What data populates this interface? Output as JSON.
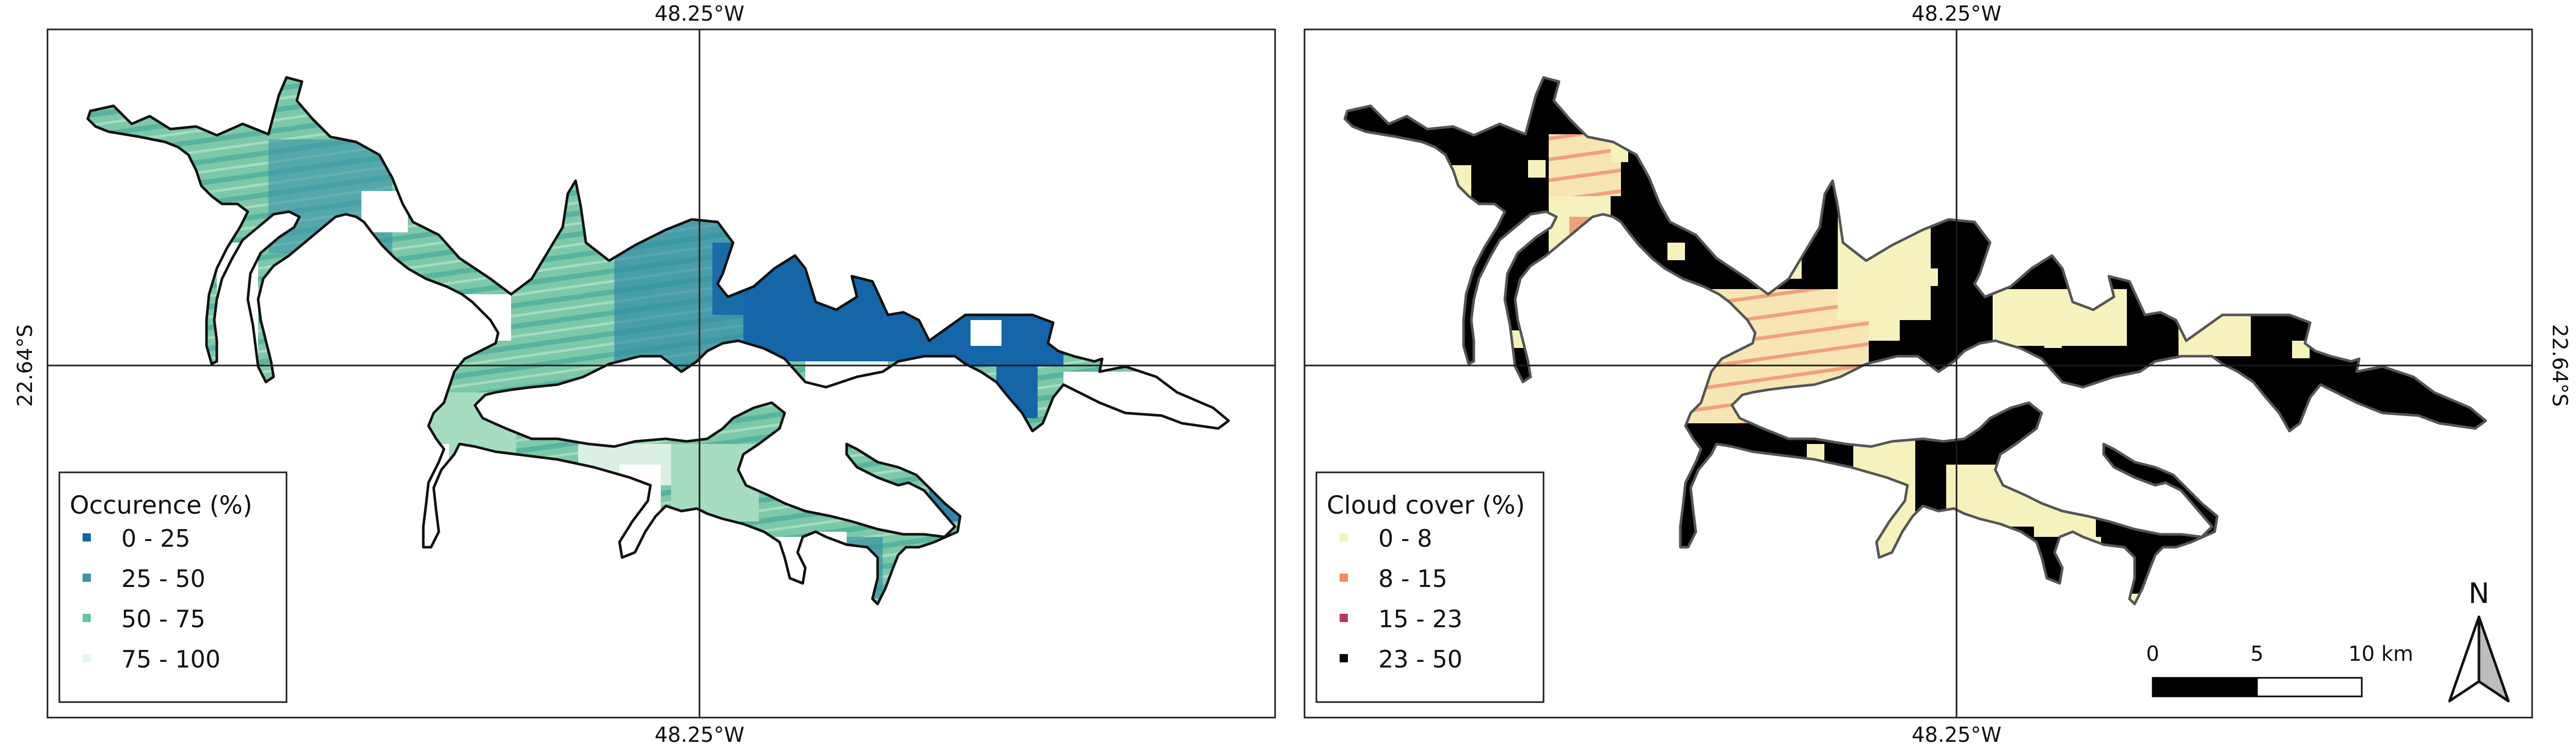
{
  "left_panel": {
    "top_axis_label": "48.25°W",
    "bottom_axis_label": "48.25°W",
    "side_axis_label": "22.64°S",
    "legend": {
      "title": "Occurence (%)",
      "items": [
        {
          "label": "0 - 25",
          "color": "#1566a8"
        },
        {
          "label": "25 - 50",
          "color": "#3a93aa"
        },
        {
          "label": "50 - 75",
          "color": "#69c4a7"
        },
        {
          "label": "75 - 100",
          "color": "#eaf6ee"
        }
      ]
    }
  },
  "right_panel": {
    "top_axis_label": "48.25°W",
    "bottom_axis_label": "48.25°W",
    "side_axis_label": "22.64°S",
    "legend": {
      "title": "Cloud cover (%)",
      "items": [
        {
          "label": "0 - 8",
          "color": "#f6f2bd"
        },
        {
          "label": "8 - 15",
          "color": "#ef8a62"
        },
        {
          "label": "15 - 23",
          "color": "#b5356c"
        },
        {
          "label": "23 - 50",
          "color": "#000000"
        }
      ]
    },
    "scale_bar": {
      "ticks": [
        "0",
        "5",
        "10 km"
      ]
    },
    "north_arrow": {
      "label": "N",
      "icon": "north-arrow-icon"
    }
  }
}
